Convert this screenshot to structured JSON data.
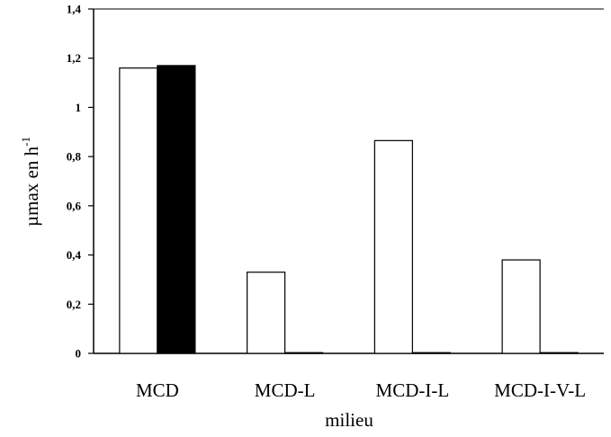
{
  "chart_data": {
    "type": "bar",
    "categories": [
      "MCD",
      "MCD-L",
      "MCD-I-L",
      "MCD-I-V-L"
    ],
    "series": [
      {
        "values": [
          1.16,
          0.33,
          0.865,
          0.38
        ],
        "color": "#ffffff"
      },
      {
        "values": [
          1.17,
          0.003,
          0.003,
          0.003
        ],
        "color": "#000000"
      }
    ],
    "ylabel": "µmax en h",
    "ylabel_superscript": "-1",
    "xlabel": "milieu",
    "ylim": [
      0,
      1.4
    ],
    "yticks": [
      {
        "value": 0,
        "label": "0"
      },
      {
        "value": 0.2,
        "label": "0,2"
      },
      {
        "value": 0.4,
        "label": "0,4"
      },
      {
        "value": 0.6,
        "label": "0,6"
      },
      {
        "value": 0.8,
        "label": "0,8"
      },
      {
        "value": 1.0,
        "label": "1"
      },
      {
        "value": 1.2,
        "label": "1,2"
      },
      {
        "value": 1.4,
        "label": "1,4"
      }
    ],
    "grid": false,
    "legend": "none"
  }
}
